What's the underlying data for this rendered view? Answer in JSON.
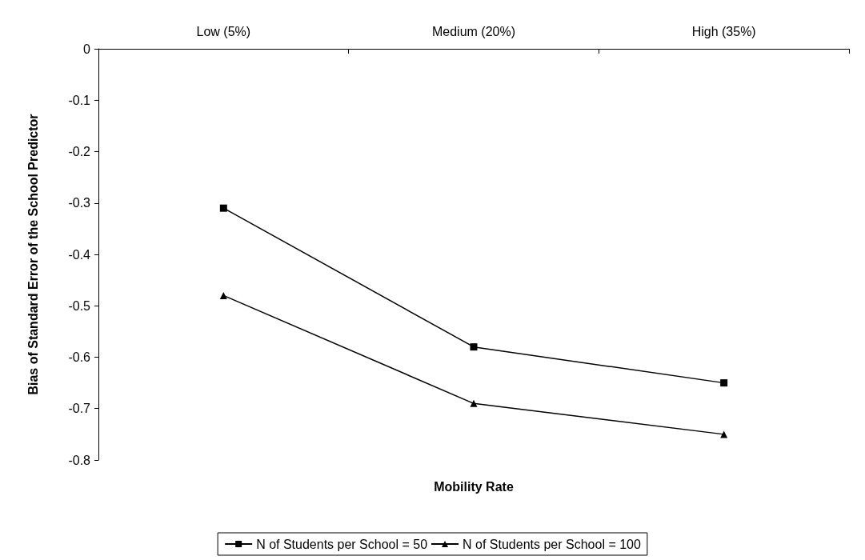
{
  "chart_data": {
    "type": "line",
    "xlabel": "Mobility Rate",
    "ylabel": "Bias of Standard Error of the School Predictor",
    "categories": [
      "Low (5%)",
      "Medium (20%)",
      "High (35%)"
    ],
    "series": [
      {
        "name": "N of Students per School = 50",
        "color": "#000000",
        "marker": "square",
        "values": [
          -0.31,
          -0.58,
          -0.65
        ]
      },
      {
        "name": "N of Students per School = 100",
        "color": "#000000",
        "marker": "triangle",
        "values": [
          -0.48,
          -0.69,
          -0.75
        ]
      }
    ],
    "ylim": [
      -0.8,
      0
    ],
    "yticks": [
      -0.8,
      -0.7,
      -0.6,
      -0.5,
      -0.4,
      -0.3,
      -0.2,
      -0.1,
      0
    ],
    "grid": false,
    "legend": "bottom",
    "line_style": "solid"
  }
}
